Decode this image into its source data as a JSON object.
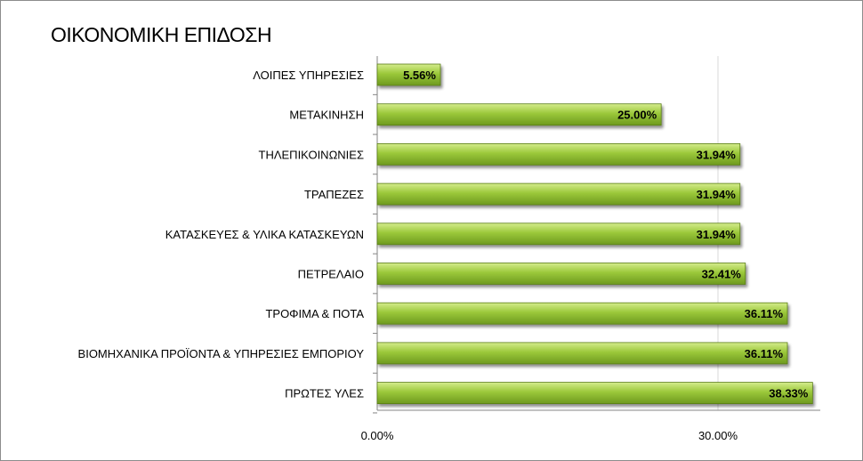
{
  "chart_data": {
    "type": "bar",
    "orientation": "horizontal",
    "title": "ΟΙΚΟΝΟΜΙΚΗ ΕΠΙΔΟΣΗ",
    "categories": [
      "ΛΟΙΠΕΣ ΥΠΗΡΕΣΙΕΣ",
      "ΜΕΤΑΚΙΝΗΣΗ",
      "ΤΗΛΕΠΙΚΟΙΝΩΝΙΕΣ",
      "ΤΡΑΠΕΖΕΣ",
      "ΚΑΤΑΣΚΕΥΕΣ & ΥΛΙΚΑ ΚΑΤΑΣΚΕΥΩΝ",
      "ΠΕΤΡΕΛΑΙΟ",
      "ΤΡΟΦΙΜΑ & ΠΟΤΑ",
      "ΒΙΟΜΗΧΑΝΙΚΑ ΠΡΟΪΟΝΤΑ & ΥΠΗΡΕΣΙΕΣ ΕΜΠΟΡΙΟΥ",
      "ΠΡΩΤΕΣ ΥΛΕΣ"
    ],
    "values": [
      5.56,
      25.0,
      31.94,
      31.94,
      31.94,
      32.41,
      36.11,
      36.11,
      38.33
    ],
    "data_labels": [
      "5.56%",
      "25.00%",
      "31.94%",
      "31.94%",
      "31.94%",
      "32.41%",
      "36.11%",
      "36.11%",
      "38.33%"
    ],
    "x_ticks": [
      0,
      30
    ],
    "x_tick_labels": [
      "0.00%",
      "30.00%"
    ],
    "xlim": [
      0,
      39
    ],
    "grid": true,
    "legend": "none",
    "colors": {
      "bar_light": "#d4ec8c",
      "bar_mid": "#9bc83a",
      "bar_dark": "#6e9a1f",
      "bar_edge": "#5a7d16",
      "gridline": "#d9d9d9",
      "axis": "#868686"
    }
  }
}
